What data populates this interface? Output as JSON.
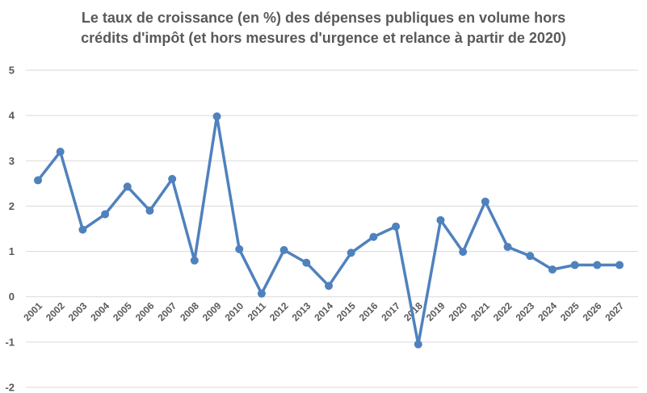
{
  "chart_data": {
    "type": "line",
    "title_lines": [
      "Le taux de croissance (en %) des dépenses publiques en volume hors",
      "crédits d'impôt (et hors mesures d'urgence et relance à partir de 2020)"
    ],
    "categories": [
      "2001",
      "2002",
      "2003",
      "2004",
      "2005",
      "2006",
      "2007",
      "2008",
      "2009",
      "2010",
      "2011",
      "2012",
      "2013",
      "2014",
      "2015",
      "2016",
      "2017",
      "2018",
      "2019",
      "2020",
      "2021",
      "2022",
      "2023",
      "2024",
      "2025",
      "2026",
      "2027"
    ],
    "series": [
      {
        "values": [
          2.57,
          3.2,
          1.48,
          1.82,
          2.43,
          1.9,
          2.6,
          0.8,
          3.98,
          1.05,
          0.07,
          1.03,
          0.75,
          0.24,
          0.97,
          1.32,
          1.55,
          -1.05,
          1.69,
          0.99,
          2.1,
          1.1,
          0.9,
          0.6,
          0.7,
          0.7,
          0.7
        ]
      }
    ],
    "ylim": [
      -2,
      5
    ],
    "yticks": [
      "-2",
      "-1",
      "0",
      "1",
      "2",
      "3",
      "4",
      "5"
    ],
    "grid": true,
    "legend": "none",
    "colors": {
      "line": "#4f81bd",
      "grid": "#d9d9d9",
      "zero_axis": "#d9d9d9",
      "text": "#595959"
    }
  }
}
